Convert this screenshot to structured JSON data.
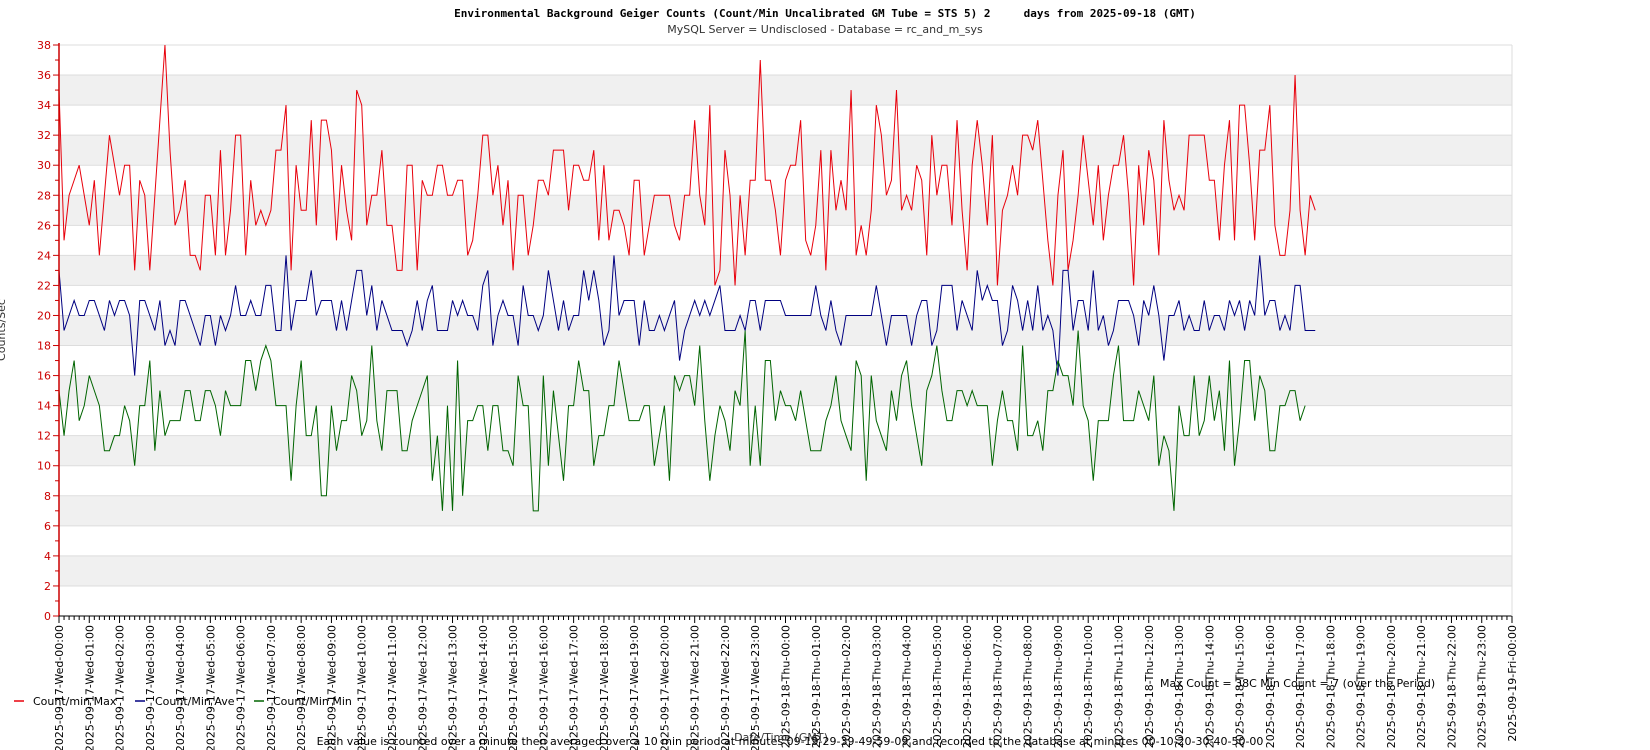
{
  "chart_data": {
    "type": "line",
    "title": "Environmental Background Geiger Counts (Count/Min Uncalibrated GM Tube = STS 5) 2     days from 2025-09-18 (GMT)",
    "subtitle": "MySQL Server = Undisclosed - Database = rc_and_m_sys",
    "xlabel": "Date/Time (GMT)",
    "ylabel": "Counts/Sec",
    "ylim": [
      0,
      38
    ],
    "y_ticks": [
      "0",
      "2",
      "4",
      "6",
      "8",
      "10",
      "12",
      "14",
      "16",
      "18",
      "20",
      "22",
      "24",
      "26",
      "28",
      "30",
      "32",
      "34",
      "36",
      "38"
    ],
    "x_ticks": [
      "2025-09-17-Wed-00:00",
      "2025-09-17-Wed-01:00",
      "2025-09-17-Wed-02:00",
      "2025-09-17-Wed-03:00",
      "2025-09-17-Wed-04:00",
      "2025-09-17-Wed-05:00",
      "2025-09-17-Wed-06:00",
      "2025-09-17-Wed-07:00",
      "2025-09-17-Wed-08:00",
      "2025-09-17-Wed-09:00",
      "2025-09-17-Wed-10:00",
      "2025-09-17-Wed-11:00",
      "2025-09-17-Wed-12:00",
      "2025-09-17-Wed-13:00",
      "2025-09-17-Wed-14:00",
      "2025-09-17-Wed-15:00",
      "2025-09-17-Wed-16:00",
      "2025-09-17-Wed-17:00",
      "2025-09-17-Wed-18:00",
      "2025-09-17-Wed-19:00",
      "2025-09-17-Wed-20:00",
      "2025-09-17-Wed-21:00",
      "2025-09-17-Wed-22:00",
      "2025-09-17-Wed-23:00",
      "2025-09-18-Thu-00:00",
      "2025-09-18-Thu-01:00",
      "2025-09-18-Thu-02:00",
      "2025-09-18-Thu-03:00",
      "2025-09-18-Thu-04:00",
      "2025-09-18-Thu-05:00",
      "2025-09-18-Thu-06:00",
      "2025-09-18-Thu-07:00",
      "2025-09-18-Thu-08:00",
      "2025-09-18-Thu-09:00",
      "2025-09-18-Thu-10:00",
      "2025-09-18-Thu-11:00",
      "2025-09-18-Thu-12:00",
      "2025-09-18-Thu-13:00",
      "2025-09-18-Thu-14:00",
      "2025-09-18-Thu-15:00",
      "2025-09-18-Thu-16:00",
      "2025-09-18-Thu-17:00",
      "2025-09-18-Thu-18:00",
      "2025-09-18-Thu-19:00",
      "2025-09-18-Thu-20:00",
      "2025-09-18-Thu-21:00",
      "2025-09-18-Thu-22:00",
      "2025-09-18-Thu-23:00",
      "2025-09-19-Fri-00:00"
    ],
    "x_range_hours": [
      0,
      48
    ],
    "samples_per_hour": 6,
    "grid": true,
    "legend_position": "bottom-left",
    "series": [
      {
        "name": "Count/min Max",
        "color": "#e8000b",
        "values": [
          35,
          25,
          28,
          29,
          30,
          28,
          26,
          29,
          24,
          28,
          32,
          30,
          28,
          30,
          30,
          23,
          29,
          28,
          23,
          28,
          33,
          38,
          31,
          26,
          27,
          29,
          24,
          24,
          23,
          28,
          28,
          24,
          31,
          24,
          27,
          32,
          32,
          24,
          29,
          26,
          27,
          26,
          27,
          31,
          31,
          34,
          23,
          30,
          27,
          27,
          33,
          26,
          33,
          33,
          31,
          25,
          30,
          27,
          25,
          35,
          34,
          26,
          28,
          28,
          31,
          26,
          26,
          23,
          23,
          30,
          30,
          23,
          29,
          28,
          28,
          30,
          30,
          28,
          28,
          29,
          29,
          24,
          25,
          28,
          32,
          32,
          28,
          30,
          26,
          29,
          23,
          28,
          28,
          24,
          26,
          29,
          29,
          28,
          31,
          31,
          31,
          27,
          30,
          30,
          29,
          29,
          31,
          25,
          30,
          25,
          27,
          27,
          26,
          24,
          29,
          29,
          24,
          26,
          28,
          28,
          28,
          28,
          26,
          25,
          28,
          28,
          33,
          28,
          26,
          34,
          22,
          23,
          31,
          28,
          22,
          28,
          24,
          29,
          29,
          37,
          29,
          29,
          27,
          24,
          29,
          30,
          30,
          33,
          25,
          24,
          26,
          31,
          23,
          31,
          27,
          29,
          27,
          35,
          24,
          26,
          24,
          27,
          34,
          32,
          28,
          29,
          35,
          27,
          28,
          27,
          30,
          29,
          24,
          32,
          28,
          30,
          30,
          26,
          33,
          27,
          23,
          30,
          33,
          30,
          26,
          32,
          22,
          27,
          28,
          30,
          28,
          32,
          32,
          31,
          33,
          29,
          25,
          22,
          28,
          31,
          23,
          25,
          28,
          32,
          29,
          26,
          30,
          25,
          28,
          30,
          30,
          32,
          28,
          22,
          30,
          26,
          31,
          29,
          24,
          33,
          29,
          27,
          28,
          27,
          32,
          32,
          32,
          32,
          29,
          29,
          25,
          30,
          33,
          25,
          34,
          34,
          30,
          25,
          31,
          31,
          34,
          26,
          24,
          24,
          27,
          36,
          27,
          24,
          28,
          27
        ]
      },
      {
        "name": "Count/Min Ave",
        "color": "#000080",
        "values": [
          23,
          19,
          20,
          21,
          20,
          20,
          21,
          21,
          20,
          19,
          21,
          20,
          21,
          21,
          20,
          16,
          21,
          21,
          20,
          19,
          21,
          18,
          19,
          18,
          21,
          21,
          20,
          19,
          18,
          20,
          20,
          18,
          20,
          19,
          20,
          22,
          20,
          20,
          21,
          20,
          20,
          22,
          22,
          19,
          19,
          24,
          19,
          21,
          21,
          21,
          23,
          20,
          21,
          21,
          21,
          19,
          21,
          19,
          21,
          23,
          23,
          20,
          22,
          19,
          21,
          20,
          19,
          19,
          19,
          18,
          19,
          21,
          19,
          21,
          22,
          19,
          19,
          19,
          21,
          20,
          21,
          20,
          20,
          19,
          22,
          23,
          18,
          20,
          21,
          20,
          20,
          18,
          22,
          20,
          20,
          19,
          20,
          23,
          21,
          19,
          21,
          19,
          20,
          20,
          23,
          21,
          23,
          21,
          18,
          19,
          24,
          20,
          21,
          21,
          21,
          18,
          21,
          19,
          19,
          20,
          19,
          20,
          21,
          17,
          19,
          20,
          21,
          20,
          21,
          20,
          21,
          22,
          19,
          19,
          19,
          20,
          19,
          21,
          21,
          19,
          21,
          21,
          21,
          21,
          20,
          20,
          20,
          20,
          20,
          20,
          22,
          20,
          19,
          21,
          19,
          18,
          20,
          20,
          20,
          20,
          20,
          20,
          22,
          20,
          18,
          20,
          20,
          20,
          20,
          18,
          20,
          21,
          21,
          18,
          19,
          22,
          22,
          22,
          19,
          21,
          20,
          19,
          23,
          21,
          22,
          21,
          21,
          18,
          19,
          22,
          21,
          19,
          21,
          19,
          22,
          19,
          20,
          19,
          16,
          23,
          23,
          19,
          21,
          21,
          19,
          23,
          19,
          20,
          18,
          19,
          21,
          21,
          21,
          20,
          18,
          21,
          20,
          22,
          20,
          17,
          20,
          20,
          21,
          19,
          20,
          19,
          19,
          21,
          19,
          20,
          20,
          19,
          21,
          20,
          21,
          19,
          21,
          20,
          24,
          20,
          21,
          21,
          19,
          20,
          19,
          22,
          22,
          19,
          19,
          19
        ]
      },
      {
        "name": "Count/Min Min",
        "color": "#006400",
        "values": [
          15,
          12,
          15,
          17,
          13,
          14,
          16,
          15,
          14,
          11,
          11,
          12,
          12,
          14,
          13,
          10,
          14,
          14,
          17,
          11,
          15,
          12,
          13,
          13,
          13,
          15,
          15,
          13,
          13,
          15,
          15,
          14,
          12,
          15,
          14,
          14,
          14,
          17,
          17,
          15,
          17,
          18,
          17,
          14,
          14,
          14,
          9,
          14,
          17,
          12,
          12,
          14,
          8,
          8,
          14,
          11,
          13,
          13,
          16,
          15,
          12,
          13,
          18,
          13,
          11,
          15,
          15,
          15,
          11,
          11,
          13,
          14,
          15,
          16,
          9,
          12,
          7,
          14,
          7,
          17,
          8,
          13,
          13,
          14,
          14,
          11,
          14,
          14,
          11,
          11,
          10,
          16,
          14,
          14,
          7,
          7,
          16,
          10,
          15,
          12,
          9,
          14,
          14,
          17,
          15,
          15,
          10,
          12,
          12,
          14,
          14,
          17,
          15,
          13,
          13,
          13,
          14,
          14,
          10,
          12,
          14,
          9,
          16,
          15,
          16,
          16,
          14,
          18,
          13,
          9,
          12,
          14,
          13,
          11,
          15,
          14,
          19,
          10,
          14,
          10,
          17,
          17,
          13,
          15,
          14,
          14,
          13,
          15,
          13,
          11,
          11,
          11,
          13,
          14,
          16,
          13,
          12,
          11,
          17,
          16,
          9,
          16,
          13,
          12,
          11,
          15,
          13,
          16,
          17,
          14,
          12,
          10,
          15,
          16,
          18,
          15,
          13,
          13,
          15,
          15,
          14,
          15,
          14,
          14,
          14,
          10,
          13,
          15,
          13,
          13,
          11,
          18,
          12,
          12,
          13,
          11,
          15,
          15,
          17,
          16,
          16,
          14,
          19,
          14,
          13,
          9,
          13,
          13,
          13,
          16,
          18,
          13,
          13,
          13,
          15,
          14,
          13,
          16,
          10,
          12,
          11,
          7,
          14,
          12,
          12,
          16,
          12,
          13,
          16,
          13,
          15,
          11,
          17,
          10,
          13,
          17,
          17,
          13,
          16,
          15,
          11,
          11,
          14,
          14,
          15,
          15,
          13,
          14
        ]
      }
    ],
    "annotations": {
      "max_min": "Max Count = 38C Min Count = 7 (over the Period)",
      "footer": "Each value is counted over a minute then averaged over a 10 min period at minutes 09-19-29-39-49-59-09 and recorded to the database at minutes 00-10-20-30-40-50-00"
    }
  }
}
